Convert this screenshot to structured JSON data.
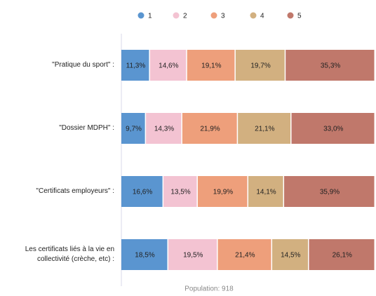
{
  "chart_data": {
    "type": "stacked_barh",
    "categories": [
      "\"Pratique du sport\" :",
      "\"Dossier MDPH\" :",
      "\"Certificats employeurs\" :",
      "Les certificats liés à la vie en collectivité (crèche, etc) :"
    ],
    "series": [
      {
        "name": "1",
        "color": "#5a95d0",
        "values": [
          11.3,
          9.7,
          16.6,
          18.5
        ],
        "value_labels": [
          "11,3%",
          "9,7%",
          "16,6%",
          "18,5%"
        ]
      },
      {
        "name": "2",
        "color": "#f3c3d2",
        "values": [
          14.6,
          14.3,
          13.5,
          19.5
        ],
        "value_labels": [
          "14,6%",
          "14,3%",
          "13,5%",
          "19,5%"
        ]
      },
      {
        "name": "3",
        "color": "#ee9f7b",
        "values": [
          19.1,
          21.9,
          19.9,
          21.4
        ],
        "value_labels": [
          "19,1%",
          "21,9%",
          "19,9%",
          "21,4%"
        ]
      },
      {
        "name": "4",
        "color": "#d2b080",
        "values": [
          19.7,
          21.1,
          14.1,
          14.5
        ],
        "value_labels": [
          "19,7%",
          "21,1%",
          "14,1%",
          "14,5%"
        ]
      },
      {
        "name": "5",
        "color": "#c0786b",
        "values": [
          35.3,
          33.0,
          35.9,
          26.1
        ],
        "value_labels": [
          "35,3%",
          "33,0%",
          "35,9%",
          "26,1%"
        ]
      }
    ],
    "xlim": [
      0,
      100
    ],
    "annotation": "Population: 918",
    "legend": "top"
  }
}
